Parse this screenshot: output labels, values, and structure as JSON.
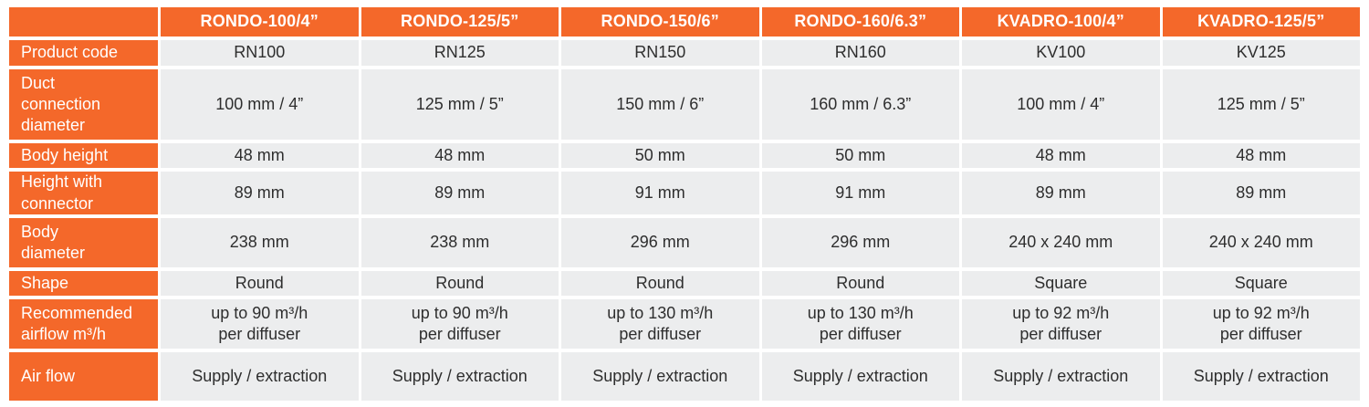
{
  "theme": {
    "accent_orange": "#F4682A",
    "cell_background": "#ECEDEE",
    "header_text_color": "#FFFFFF",
    "cell_text_color": "#2E2E2E"
  },
  "table": {
    "columns": [
      "RONDO-100/4”",
      "RONDO-125/5”",
      "RONDO-150/6”",
      "RONDO-160/6.3”",
      "KVADRO-100/4”",
      "KVADRO-125/5”"
    ],
    "rows": [
      {
        "label": "Product code",
        "values": [
          "RN100",
          "RN125",
          "RN150",
          "RN160",
          "KV100",
          "KV125"
        ]
      },
      {
        "label": "Duct\nconnection\ndiameter",
        "values": [
          "100 mm / 4”",
          "125 mm / 5”",
          "150 mm / 6”",
          "160 mm / 6.3”",
          "100 mm / 4”",
          "125 mm / 5”"
        ]
      },
      {
        "label": "Body height",
        "values": [
          "48 mm",
          "48 mm",
          "50 mm",
          "50 mm",
          "48 mm",
          "48 mm"
        ]
      },
      {
        "label": "Height with\nconnector",
        "values": [
          "89 mm",
          "89 mm",
          "91 mm",
          "91 mm",
          "89 mm",
          "89 mm"
        ]
      },
      {
        "label": "Body\ndiameter",
        "values": [
          "238 mm",
          "238 mm",
          "296 mm",
          "296 mm",
          "240 x 240 mm",
          "240 x 240 mm"
        ]
      },
      {
        "label": "Shape",
        "values": [
          "Round",
          "Round",
          "Round",
          "Round",
          "Square",
          "Square"
        ]
      },
      {
        "label": "Recommended\nairflow m³/h",
        "values": [
          "up to 90 m³/h\nper diffuser",
          "up to 90 m³/h\nper diffuser",
          "up to 130 m³/h\nper diffuser",
          "up to 130 m³/h\nper diffuser",
          "up to 92 m³/h\nper diffuser",
          "up to 92 m³/h\nper diffuser"
        ]
      },
      {
        "label": "Air flow",
        "values": [
          "Supply / extraction",
          "Supply / extraction",
          "Supply / extraction",
          "Supply / extraction",
          "Supply / extraction",
          "Supply / extraction"
        ]
      }
    ]
  }
}
